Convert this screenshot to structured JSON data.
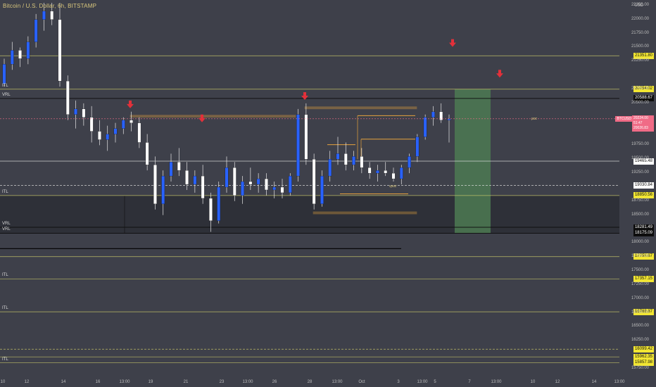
{
  "title": "Bitcoin / U.S. Dollar, 6h, BITSTAMP",
  "currency": "USD",
  "yaxis_ticks": [
    "22250.00",
    "22000.00",
    "21750.00",
    "21500.00",
    "21250.00",
    "20750.00",
    "20500.00",
    "19750.00",
    "19500.00",
    "19250.00",
    "18750.00",
    "18500.00",
    "18000.00",
    "17750.00",
    "17500.00",
    "17250.00",
    "17000.00",
    "16750.00",
    "16500.00",
    "16250.00",
    "15750.00"
  ],
  "price_labels": [
    {
      "text": "21351.80",
      "style": "yellow",
      "price": 21351.8
    },
    {
      "text": "20754.02",
      "style": "yellow",
      "price": 20754.02
    },
    {
      "text": "20588.67",
      "style": "black",
      "price": 20588.67
    },
    {
      "text": "19465.48",
      "style": "white",
      "price": 19465.48
    },
    {
      "text": "19030.84",
      "style": "white",
      "price": 19030.84
    },
    {
      "text": "18850.56",
      "style": "yellow",
      "price": 18850.56
    },
    {
      "text": "18281.49",
      "style": "black",
      "price": 18281.49
    },
    {
      "text": "18175.09",
      "style": "black",
      "price": 18175.09
    },
    {
      "text": "17755.67",
      "style": "yellow",
      "price": 17755.67
    },
    {
      "text": "17357.15",
      "style": "yellow",
      "price": 17357.15
    },
    {
      "text": "16768.87",
      "style": "yellow",
      "price": 16768.87
    },
    {
      "text": "16099.42",
      "style": "yellow",
      "price": 16099.42
    },
    {
      "text": "15962.35",
      "style": "yellow",
      "price": 15962.35
    },
    {
      "text": "15857.98",
      "style": "yellow",
      "price": 15857.98
    }
  ],
  "current": {
    "symbol": "BTCUSD",
    "price": "20224.00",
    "countdown": "51:47",
    "alt": "20026.83"
  },
  "level_labels": [
    {
      "text": "ITL",
      "price": 20754
    },
    {
      "text": "VRL",
      "price": 20588
    },
    {
      "text": "ITL",
      "price": 18850
    },
    {
      "text": "VRL",
      "price": 18281
    },
    {
      "text": "VRL",
      "price": 18175
    },
    {
      "text": "ITL",
      "price": 17357
    },
    {
      "text": "ITL",
      "price": 16768
    },
    {
      "text": "ITL",
      "price": 15857
    }
  ],
  "poc_label": "poc",
  "vpoc_label": "vpoc",
  "xaxis_ticks": [
    "10",
    "12",
    "14",
    "16",
    "13:00",
    "19",
    "21",
    "23",
    "13:00",
    "26",
    "28",
    "13:00",
    "Oct",
    "3",
    "13:00",
    "5",
    "7",
    "13:00",
    "10",
    "12",
    "14",
    "13:00"
  ],
  "colors": {
    "background": "#3e404a",
    "up_candle": "#2962ff",
    "down_candle": "#ffffff",
    "level_line": "#c8c86a",
    "orange_zone": "#e6a23c",
    "arrow": "#e3303a",
    "green_zone": "#4c7a52",
    "current_price": "#f06b86"
  },
  "chart_data": {
    "type": "candlestick",
    "title": "Bitcoin / U.S. Dollar, 6h, BITSTAMP",
    "ylim": [
      15700,
      22350
    ],
    "levels": [
      21351.8,
      20754.02,
      20588.67,
      19465.48,
      19030.84,
      18850.56,
      18281.49,
      18175.09,
      17755.67,
      17357.15,
      16768.87,
      16099.42,
      15962.35,
      15857.98
    ],
    "candles": [
      [
        20850,
        21300,
        20800,
        21200
      ],
      [
        21200,
        21600,
        21100,
        21450
      ],
      [
        21450,
        21500,
        21150,
        21300
      ],
      [
        21300,
        21700,
        21200,
        21600
      ],
      [
        21600,
        22100,
        21500,
        22000
      ],
      [
        22000,
        22300,
        21800,
        22150
      ],
      [
        22150,
        22300,
        21900,
        22000
      ],
      [
        22000,
        22300,
        20800,
        20900
      ],
      [
        20900,
        21000,
        20200,
        20300
      ],
      [
        20300,
        20550,
        20050,
        20400
      ],
      [
        20400,
        20500,
        20100,
        20250
      ],
      [
        20250,
        20450,
        19800,
        20000
      ],
      [
        20000,
        20200,
        19750,
        19850
      ],
      [
        19850,
        20100,
        19650,
        19950
      ],
      [
        19950,
        20150,
        19800,
        20050
      ],
      [
        20050,
        20250,
        19950,
        20200
      ],
      [
        20200,
        20350,
        20000,
        20150
      ],
      [
        20150,
        20250,
        19700,
        19800
      ],
      [
        19800,
        19950,
        19300,
        19400
      ],
      [
        19400,
        19550,
        18600,
        18700
      ],
      [
        18700,
        19300,
        18500,
        19200
      ],
      [
        19200,
        19600,
        19100,
        19450
      ],
      [
        19450,
        19700,
        19200,
        19300
      ],
      [
        19300,
        19450,
        18950,
        19050
      ],
      [
        19050,
        19300,
        18900,
        19200
      ],
      [
        19200,
        19400,
        18700,
        18800
      ],
      [
        18800,
        18900,
        18200,
        18400
      ],
      [
        18400,
        19100,
        18350,
        19000
      ],
      [
        19000,
        19550,
        18900,
        19350
      ],
      [
        19350,
        19450,
        18750,
        18850
      ],
      [
        18850,
        19200,
        18700,
        19100
      ],
      [
        19100,
        19350,
        18950,
        19050
      ],
      [
        19050,
        19250,
        18900,
        19150
      ],
      [
        19150,
        19250,
        18850,
        18950
      ],
      [
        18950,
        19100,
        18800,
        19000
      ],
      [
        19000,
        19150,
        18800,
        18900
      ],
      [
        18900,
        19250,
        18850,
        19200
      ],
      [
        19200,
        20400,
        19100,
        20300
      ],
      [
        20300,
        20500,
        19400,
        19500
      ],
      [
        19500,
        19600,
        18600,
        18700
      ],
      [
        18700,
        19300,
        18650,
        19200
      ],
      [
        19200,
        19650,
        19100,
        19500
      ],
      [
        19500,
        19900,
        19400,
        19600
      ],
      [
        19600,
        19800,
        19300,
        19400
      ],
      [
        19400,
        19650,
        19300,
        19550
      ],
      [
        19550,
        19700,
        19250,
        19350
      ],
      [
        19350,
        19450,
        19150,
        19250
      ],
      [
        19250,
        19400,
        19100,
        19300
      ],
      [
        19300,
        19450,
        19200,
        19250
      ],
      [
        19250,
        19350,
        19100,
        19150
      ],
      [
        19150,
        19400,
        19050,
        19350
      ],
      [
        19350,
        19600,
        19250,
        19550
      ],
      [
        19550,
        19950,
        19450,
        19900
      ],
      [
        19900,
        20300,
        19850,
        20250
      ],
      [
        20250,
        20450,
        20100,
        20350
      ],
      [
        20350,
        20500,
        20150,
        20200
      ],
      [
        20200,
        20300,
        19800,
        20224
      ]
    ]
  }
}
